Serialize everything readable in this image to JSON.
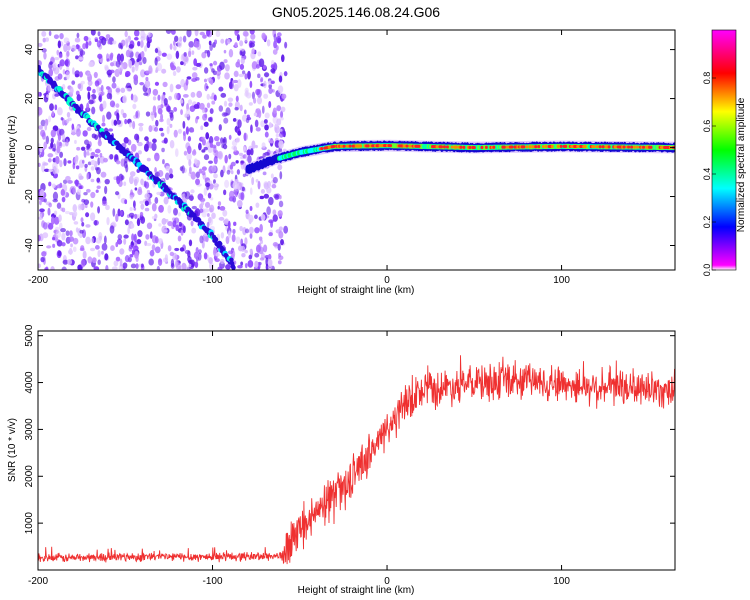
{
  "figure": {
    "title": "GN05.2025.146.08.24.G06"
  },
  "chart_data": [
    {
      "type": "heatmap",
      "title": "",
      "xlabel": "Height of straight line (km)",
      "ylabel": "Frequency (Hz)",
      "xlim": [
        -200,
        165
      ],
      "ylim": [
        -50,
        48
      ],
      "xticks": [
        -200,
        -100,
        0,
        100
      ],
      "yticks": [
        -40,
        -20,
        0,
        20,
        40
      ],
      "grid": false,
      "colorbar": {
        "label": "Normalized spectral amplitude",
        "range": [
          0,
          1
        ],
        "ticks": [
          0.0,
          0.2,
          0.4,
          0.6,
          0.8
        ],
        "colormap": [
          "#ff00ff",
          "#0000ff",
          "#00ffff",
          "#00ff00",
          "#ffff00",
          "#ff0000",
          "#ff00ff"
        ]
      },
      "features": {
        "noise_region_x": [
          -200,
          -58
        ],
        "descending_trace": [
          {
            "x": -200,
            "y": 32
          },
          {
            "x": -175,
            "y": 14
          },
          {
            "x": -150,
            "y": -2
          },
          {
            "x": -125,
            "y": -18
          },
          {
            "x": -100,
            "y": -36
          },
          {
            "x": -88,
            "y": -48
          }
        ],
        "carrier_trace": [
          {
            "x": -80,
            "y": -9
          },
          {
            "x": -65,
            "y": -5
          },
          {
            "x": -50,
            "y": -2
          },
          {
            "x": -30,
            "y": 0.5
          },
          {
            "x": 0,
            "y": 0.8
          },
          {
            "x": 50,
            "y": 0
          },
          {
            "x": 100,
            "y": 0.5
          },
          {
            "x": 165,
            "y": 0
          }
        ]
      }
    },
    {
      "type": "line",
      "title": "",
      "xlabel": "Height of straight line (km)",
      "ylabel": "SNR (10 * v/v)",
      "xlim": [
        -200,
        165
      ],
      "ylim": [
        0,
        5100
      ],
      "xticks": [
        -200,
        -100,
        0,
        100
      ],
      "yticks": [
        1000,
        2000,
        3000,
        4000,
        5000
      ],
      "grid": false,
      "series": [
        {
          "color": "#ef3030",
          "envelope": [
            {
              "x": -200,
              "y": 250
            },
            {
              "x": -150,
              "y": 280
            },
            {
              "x": -100,
              "y": 280
            },
            {
              "x": -60,
              "y": 300
            },
            {
              "x": -50,
              "y": 800
            },
            {
              "x": -40,
              "y": 1200
            },
            {
              "x": -30,
              "y": 1600
            },
            {
              "x": -20,
              "y": 2000
            },
            {
              "x": -10,
              "y": 2500
            },
            {
              "x": 0,
              "y": 3000
            },
            {
              "x": 10,
              "y": 3500
            },
            {
              "x": 20,
              "y": 3800
            },
            {
              "x": 40,
              "y": 3950
            },
            {
              "x": 80,
              "y": 4050
            },
            {
              "x": 120,
              "y": 3900
            },
            {
              "x": 165,
              "y": 3850
            }
          ]
        }
      ]
    }
  ]
}
